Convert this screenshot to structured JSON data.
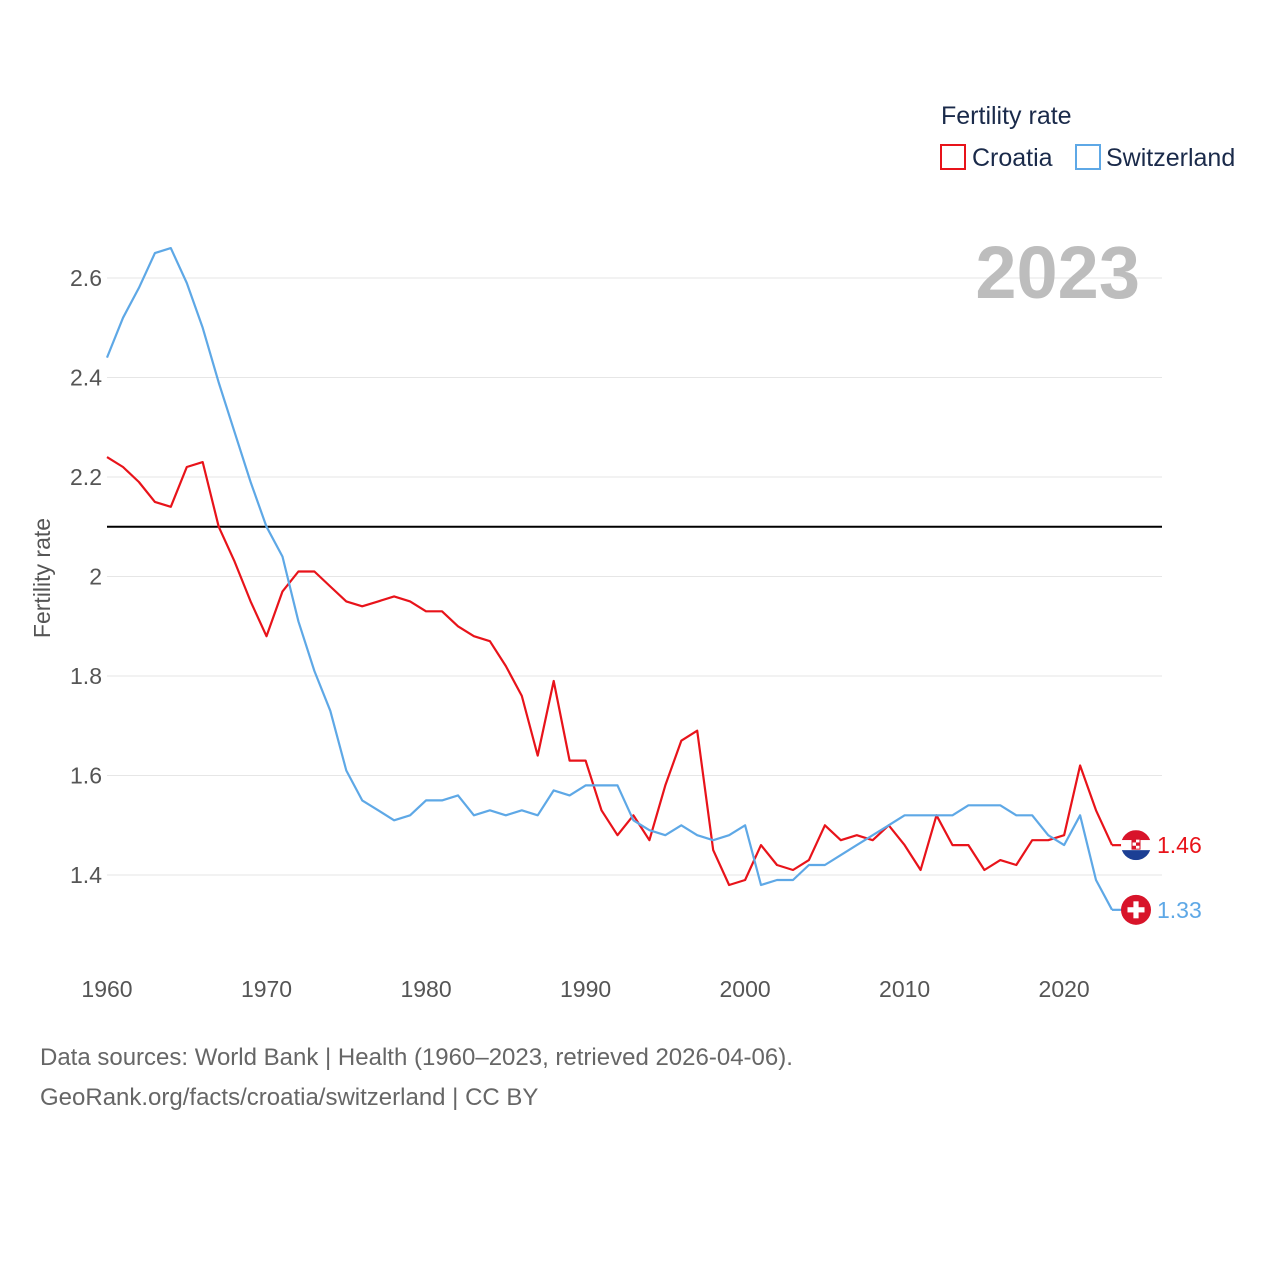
{
  "chart_data": {
    "type": "line",
    "year_label": "2023",
    "ylabel": "Fertility rate",
    "xlabel": "",
    "xlim": [
      1960,
      2023
    ],
    "ylim": [
      1.3,
      2.68
    ],
    "x_ticks": [
      1960,
      1970,
      1980,
      1990,
      2000,
      2010,
      2020
    ],
    "y_ticks": [
      1.4,
      1.6,
      1.8,
      2.0,
      2.2,
      2.4,
      2.6
    ],
    "y_tick_labels": [
      "1.4",
      "1.6",
      "1.8",
      "2",
      "2.2",
      "2.4",
      "2.6"
    ],
    "reference_line": 2.1,
    "legend": {
      "title": "Fertility rate",
      "placement": "top-right"
    },
    "x": [
      1960,
      1961,
      1962,
      1963,
      1964,
      1965,
      1966,
      1967,
      1968,
      1969,
      1970,
      1971,
      1972,
      1973,
      1974,
      1975,
      1976,
      1977,
      1978,
      1979,
      1980,
      1981,
      1982,
      1983,
      1984,
      1985,
      1986,
      1987,
      1988,
      1989,
      1990,
      1991,
      1992,
      1993,
      1994,
      1995,
      1996,
      1997,
      1998,
      1999,
      2000,
      2001,
      2002,
      2003,
      2004,
      2005,
      2006,
      2007,
      2008,
      2009,
      2010,
      2011,
      2012,
      2013,
      2014,
      2015,
      2016,
      2017,
      2018,
      2019,
      2020,
      2021,
      2022,
      2023
    ],
    "series": [
      {
        "name": "Croatia",
        "color": "#e8131a",
        "icon": "croatia-flag-icon",
        "end_label": "1.46",
        "values": [
          2.24,
          2.22,
          2.19,
          2.15,
          2.14,
          2.22,
          2.23,
          2.1,
          2.03,
          1.95,
          1.88,
          1.97,
          2.01,
          2.01,
          1.98,
          1.95,
          1.94,
          1.95,
          1.96,
          1.95,
          1.93,
          1.93,
          1.9,
          1.88,
          1.87,
          1.82,
          1.76,
          1.64,
          1.79,
          1.63,
          1.63,
          1.53,
          1.48,
          1.52,
          1.47,
          1.58,
          1.67,
          1.69,
          1.45,
          1.38,
          1.39,
          1.46,
          1.42,
          1.41,
          1.43,
          1.5,
          1.47,
          1.48,
          1.47,
          1.5,
          1.46,
          1.41,
          1.52,
          1.46,
          1.46,
          1.41,
          1.43,
          1.42,
          1.47,
          1.47,
          1.48,
          1.62,
          1.53,
          1.46
        ]
      },
      {
        "name": "Switzerland",
        "color": "#5ea8e6",
        "icon": "switzerland-flag-icon",
        "end_label": "1.33",
        "values": [
          2.44,
          2.52,
          2.58,
          2.65,
          2.66,
          2.59,
          2.5,
          2.39,
          2.29,
          2.19,
          2.1,
          2.04,
          1.91,
          1.81,
          1.73,
          1.61,
          1.55,
          1.53,
          1.51,
          1.52,
          1.55,
          1.55,
          1.56,
          1.52,
          1.53,
          1.52,
          1.53,
          1.52,
          1.57,
          1.56,
          1.58,
          1.58,
          1.58,
          1.51,
          1.49,
          1.48,
          1.5,
          1.48,
          1.47,
          1.48,
          1.5,
          1.38,
          1.39,
          1.39,
          1.42,
          1.42,
          1.44,
          1.46,
          1.48,
          1.5,
          1.52,
          1.52,
          1.52,
          1.52,
          1.54,
          1.54,
          1.54,
          1.52,
          1.52,
          1.48,
          1.46,
          1.52,
          1.39,
          1.33
        ]
      }
    ]
  },
  "footer": {
    "line1": "Data sources: World Bank | Health (1960–2023, retrieved 2026-04-06).",
    "line2": "GeoRank.org/facts/croatia/switzerland | CC BY"
  }
}
